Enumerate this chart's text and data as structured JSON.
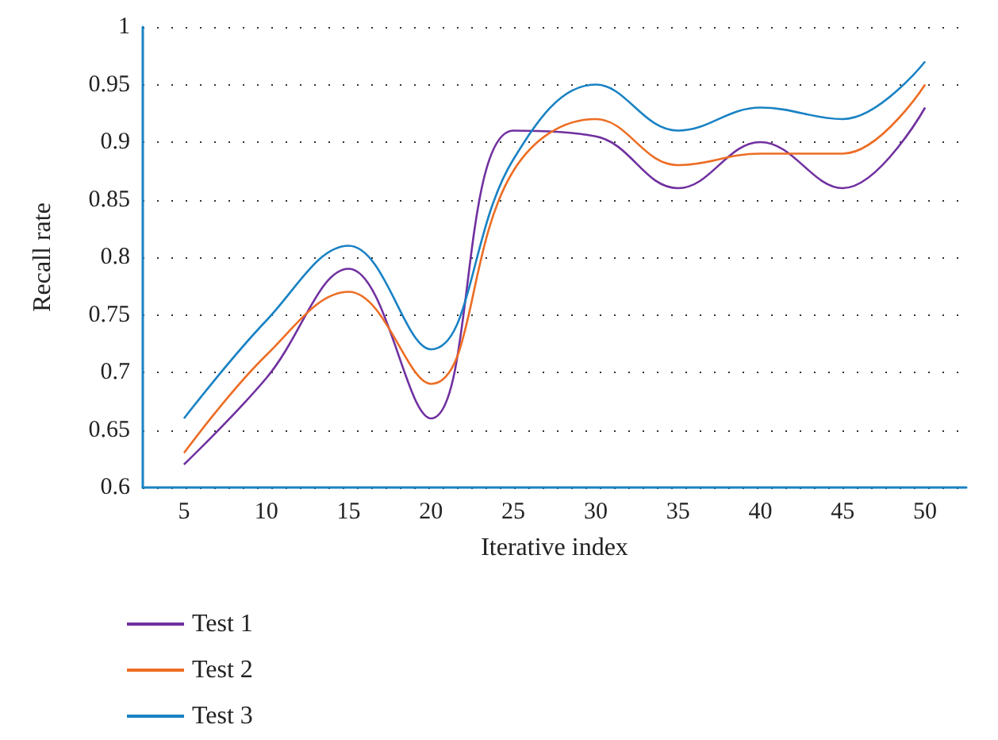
{
  "chart_data": {
    "type": "line",
    "xlabel": "Iterative index",
    "ylabel": "Recall rate",
    "categories": [
      "5",
      "10",
      "15",
      "20",
      "25",
      "30",
      "35",
      "40",
      "45",
      "50"
    ],
    "series": [
      {
        "name": "Test 1",
        "color": "#7030a0",
        "values": [
          0.62,
          0.695,
          0.79,
          0.66,
          0.91,
          0.905,
          0.86,
          0.9,
          0.86,
          0.93
        ]
      },
      {
        "name": "Test 2",
        "color": "#ed6d24",
        "values": [
          0.63,
          0.715,
          0.77,
          0.69,
          0.875,
          0.92,
          0.88,
          0.89,
          0.89,
          0.95
        ]
      },
      {
        "name": "Test 3",
        "color": "#1a82c4",
        "values": [
          0.66,
          0.745,
          0.81,
          0.72,
          0.885,
          0.95,
          0.91,
          0.93,
          0.92,
          0.97
        ]
      }
    ],
    "ylim": [
      0.6,
      1
    ],
    "yticks": [
      0.6,
      0.65,
      0.7,
      0.75,
      0.8,
      0.85,
      0.9,
      0.95,
      1
    ],
    "grid": "y",
    "legend": "bottom left",
    "marker": "none",
    "line_style": "solid"
  }
}
